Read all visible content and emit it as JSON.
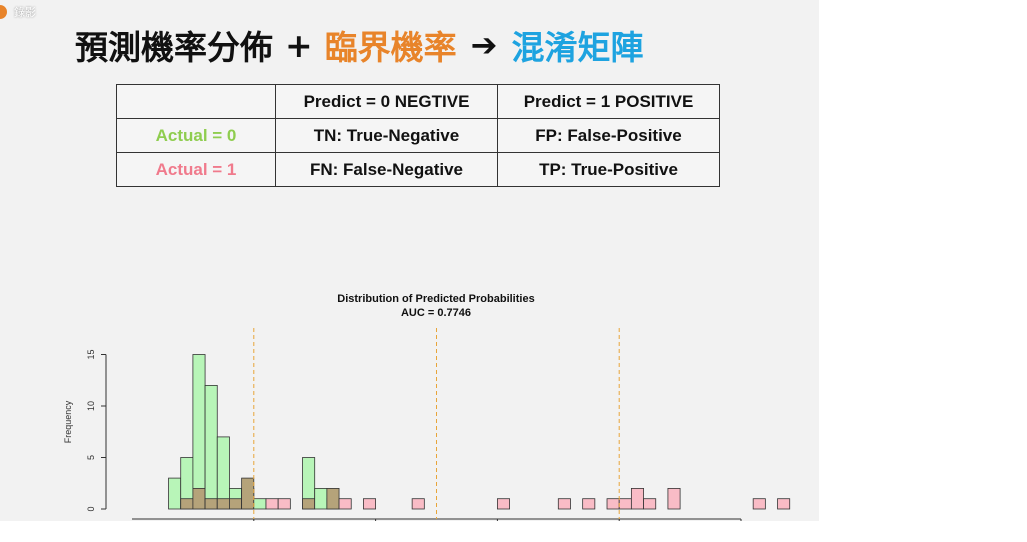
{
  "slide": {
    "corner_text": "錄影",
    "title": {
      "part1": "預測機率分佈",
      "plus": "+",
      "part2": "臨界機率",
      "arrow": "➔",
      "part3": "混淆矩陣"
    },
    "colors": {
      "part1": "#111111",
      "part2": "#e8842a",
      "part3": "#1ea3e0",
      "actual0": "#8fcd4f",
      "actual1": "#f07a8c"
    }
  },
  "matrix": {
    "headers": [
      "",
      "Predict = 0  NEGTIVE",
      "Predict = 1  POSITIVE"
    ],
    "rows": [
      {
        "label": "Actual = 0",
        "cells": [
          "TN: True-Negative",
          "FP: False-Positive"
        ]
      },
      {
        "label": "Actual = 1",
        "cells": [
          "FN: False-Negative",
          "TP: True-Positive"
        ]
      }
    ]
  },
  "chart_data": {
    "type": "bar",
    "title": "Distribution of Predicted Probabilities",
    "subtitle": "AUC = 0.7746",
    "ylabel": "Frequency",
    "yticks": [
      "0",
      "5",
      "10",
      "15"
    ],
    "ylim": [
      0,
      17
    ],
    "bins_start": 0.03,
    "bin_width": 0.01,
    "colors": {
      "class0": "#b8f5b8",
      "class1": "#f9bcc6",
      "overlap": "#b5a37a",
      "threshold": "#e8a53a"
    },
    "series": [
      {
        "values": [
          3,
          5,
          15,
          12,
          7,
          2,
          2,
          1,
          0,
          0,
          0,
          5,
          2,
          1,
          0,
          0,
          0,
          0,
          0,
          0,
          0,
          0,
          0,
          0,
          0,
          0,
          0,
          0,
          0,
          0,
          0,
          0,
          0,
          0,
          0,
          0,
          0,
          0,
          0,
          0,
          0,
          0,
          0,
          0,
          0,
          0,
          0,
          0,
          0,
          0,
          0
        ]
      },
      {
        "values": [
          0,
          1,
          2,
          1,
          1,
          1,
          3,
          0,
          1,
          1,
          0,
          1,
          0,
          2,
          1,
          0,
          1,
          0,
          0,
          0,
          1,
          0,
          0,
          0,
          0,
          0,
          0,
          1,
          0,
          0,
          0,
          0,
          1,
          0,
          1,
          0,
          1,
          1,
          2,
          1,
          0,
          2,
          0,
          0,
          0,
          0,
          0,
          0,
          1,
          0,
          1
        ]
      }
    ],
    "thresholds": [
      0.1,
      0.25,
      0.4
    ],
    "xlim": [
      0.0,
      0.5
    ]
  }
}
